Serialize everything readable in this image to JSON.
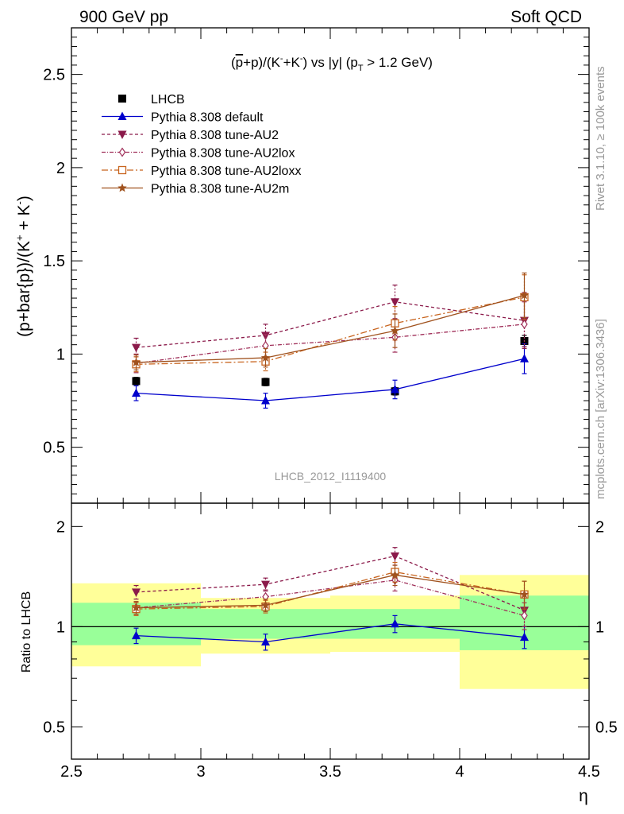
{
  "header": {
    "left": "900 GeV pp",
    "right": "Soft QCD"
  },
  "side_labels": {
    "rivet": "Rivet 3.1.10, ≥ 100k events",
    "mcplots": "mcplots.cern.ch [arXiv:1306.3436]"
  },
  "colors": {
    "data": "#000000",
    "default": "#0000cc",
    "au2": "#8b1a4a",
    "au2lox": "#a0305a",
    "au2loxx": "#c8641e",
    "au2m": "#a0521e",
    "band_inner": "#99ff99",
    "band_outer": "#ffff99",
    "watermark": "#999999"
  },
  "chart_data": [
    {
      "type": "scatter",
      "panel": "main",
      "title": "(p̅+p)/(K⁻+K⁻) vs |y| (p_T > 1.2 GeV)",
      "title_parts": {
        "a": "(",
        "pbar": "p",
        "b": "+p)/(K",
        "c": "+K",
        "d": ") vs |y| (p",
        "sub": "T",
        "e": " > 1.2 GeV)",
        "minus": "-"
      },
      "ylabel": "(p+bar{p})/(K⁺ + K⁻)",
      "ylabel_parts": {
        "main": "(p+bar{p})/(K",
        "plus": "+",
        "mid": " + K",
        "minus": "-",
        "end": ")"
      },
      "watermark": "LHCB_2012_I1119400",
      "xlim": [
        2.5,
        4.5
      ],
      "ylim": [
        0.2,
        2.75
      ],
      "yticks": [
        0.5,
        1,
        1.5,
        2,
        2.5
      ],
      "ytick_labels": [
        "0.5",
        "1",
        "1.5",
        "2",
        "2.5"
      ],
      "legend_position": "top-left",
      "x": [
        2.75,
        3.25,
        3.75,
        4.25
      ],
      "series": [
        {
          "name": "LHCB",
          "key": "data",
          "values": [
            0.855,
            0.85,
            0.8,
            1.07
          ],
          "errors": [
            0.02,
            0.02,
            0.02,
            0.03
          ]
        },
        {
          "name": "Pythia 8.308 default",
          "key": "default",
          "values": [
            0.79,
            0.75,
            0.81,
            0.975
          ],
          "errors": [
            0.04,
            0.04,
            0.05,
            0.08
          ]
        },
        {
          "name": "Pythia 8.308 tune-AU2",
          "key": "au2",
          "values": [
            1.035,
            1.1,
            1.28,
            1.18
          ],
          "errors": [
            0.05,
            0.06,
            0.09,
            0.15
          ]
        },
        {
          "name": "Pythia 8.308 tune-AU2lox",
          "key": "au2lox",
          "values": [
            0.95,
            1.045,
            1.09,
            1.16
          ],
          "errors": [
            0.05,
            0.06,
            0.08,
            0.12
          ]
        },
        {
          "name": "Pythia 8.308 tune-AU2loxx",
          "key": "au2loxx",
          "values": [
            0.945,
            0.96,
            1.165,
            1.305
          ],
          "errors": [
            0.04,
            0.05,
            0.09,
            0.12
          ]
        },
        {
          "name": "Pythia 8.308 tune-AU2m",
          "key": "au2m",
          "values": [
            0.955,
            0.98,
            1.125,
            1.315
          ],
          "errors": [
            0.04,
            0.05,
            0.09,
            0.12
          ]
        }
      ]
    },
    {
      "type": "scatter",
      "panel": "ratio",
      "ylabel": "Ratio to LHCB",
      "xlabel": "η",
      "xlim": [
        2.5,
        4.5
      ],
      "ylim": [
        0.4,
        2.35
      ],
      "yscale": "log",
      "yticks": [
        0.5,
        1,
        2
      ],
      "ytick_labels": [
        "0.5",
        "1",
        "2"
      ],
      "xticks": [
        2.5,
        3,
        3.5,
        4,
        4.5
      ],
      "xtick_labels": [
        "2.5",
        "3",
        "3.5",
        "4",
        "4.5"
      ],
      "reference_line": 1,
      "bands": [
        {
          "x": [
            2.5,
            3.0
          ],
          "inner": [
            0.88,
            1.18
          ],
          "outer": [
            0.76,
            1.35
          ]
        },
        {
          "x": [
            3.0,
            3.5
          ],
          "inner": [
            0.92,
            1.13
          ],
          "outer": [
            0.83,
            1.22
          ]
        },
        {
          "x": [
            3.5,
            4.0
          ],
          "inner": [
            0.92,
            1.13
          ],
          "outer": [
            0.84,
            1.24
          ]
        },
        {
          "x": [
            4.0,
            4.5
          ],
          "inner": [
            0.85,
            1.24
          ],
          "outer": [
            0.65,
            1.43
          ]
        }
      ],
      "x": [
        2.75,
        3.25,
        3.75,
        4.25
      ],
      "series": [
        {
          "name": "Pythia 8.308 default",
          "key": "default",
          "values": [
            0.94,
            0.9,
            1.02,
            0.93
          ],
          "errors": [
            0.05,
            0.05,
            0.06,
            0.07
          ]
        },
        {
          "name": "Pythia 8.308 tune-AU2",
          "key": "au2",
          "values": [
            1.27,
            1.34,
            1.63,
            1.12
          ],
          "errors": [
            0.06,
            0.06,
            0.1,
            0.12
          ]
        },
        {
          "name": "Pythia 8.308 tune-AU2lox",
          "key": "au2lox",
          "values": [
            1.14,
            1.23,
            1.38,
            1.08
          ],
          "errors": [
            0.05,
            0.06,
            0.1,
            0.1
          ]
        },
        {
          "name": "Pythia 8.308 tune-AU2loxx",
          "key": "au2loxx",
          "values": [
            1.13,
            1.15,
            1.46,
            1.25
          ],
          "errors": [
            0.05,
            0.05,
            0.1,
            0.12
          ]
        },
        {
          "name": "Pythia 8.308 tune-AU2m",
          "key": "au2m",
          "values": [
            1.14,
            1.16,
            1.43,
            1.25
          ],
          "errors": [
            0.05,
            0.05,
            0.1,
            0.12
          ]
        }
      ]
    }
  ]
}
